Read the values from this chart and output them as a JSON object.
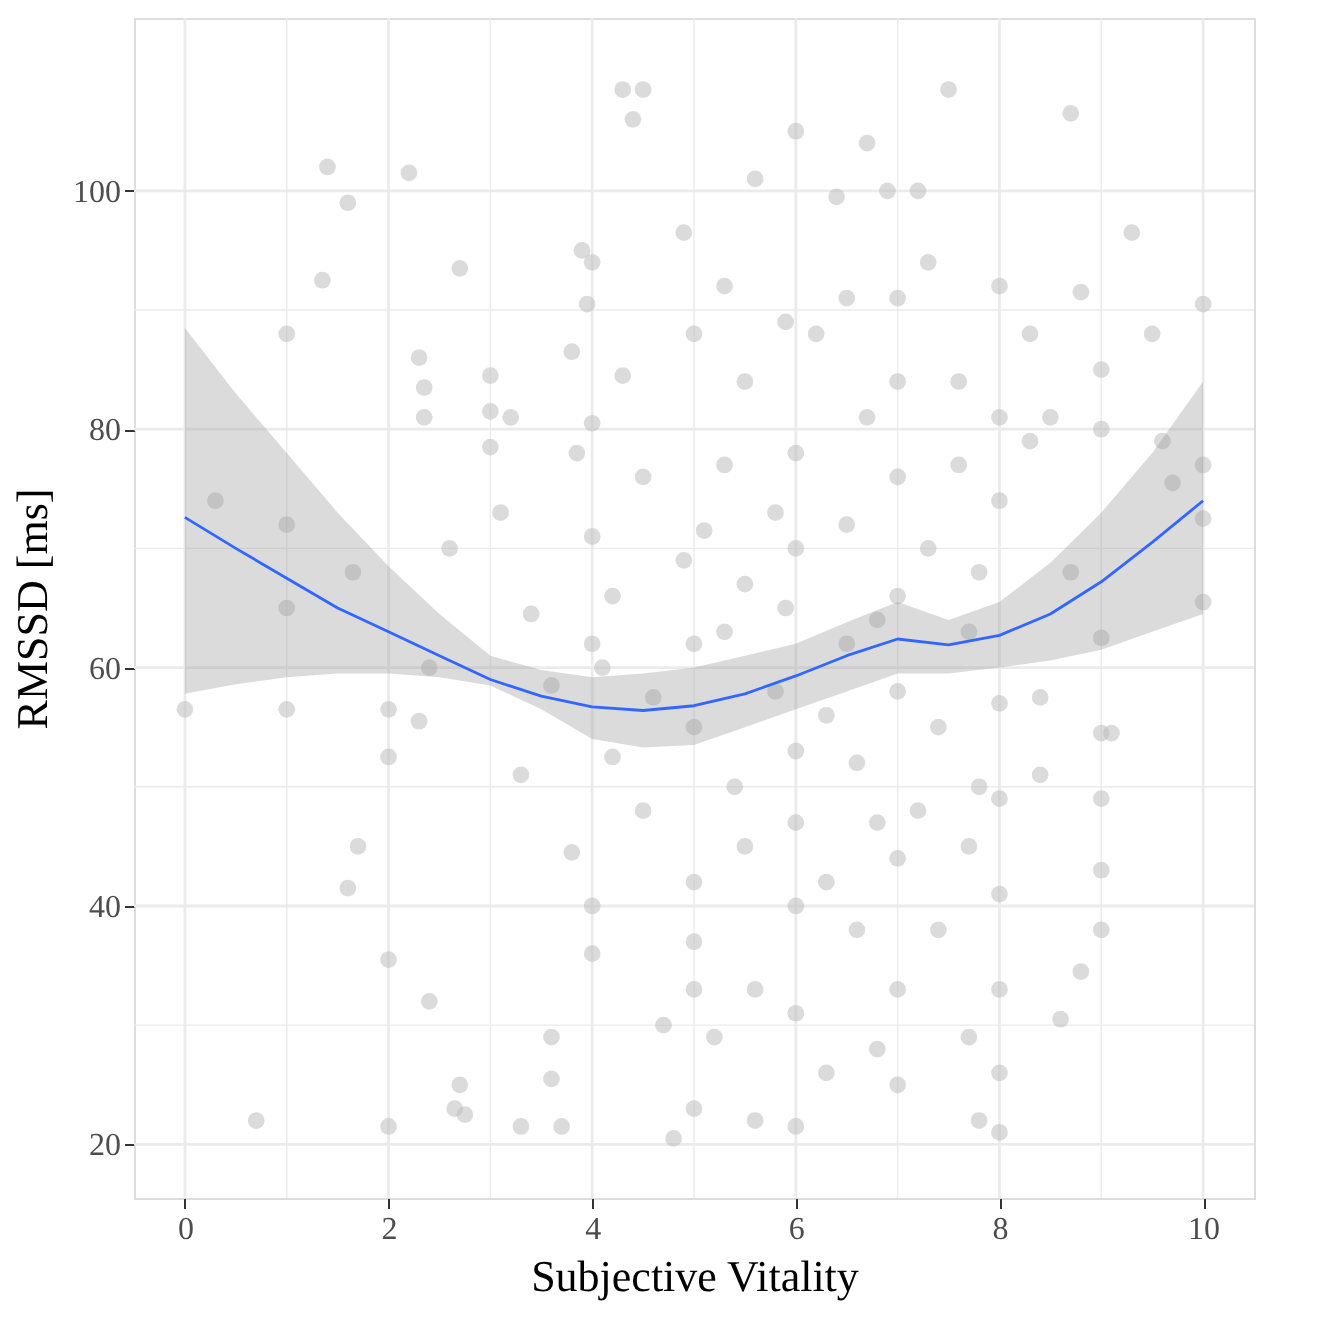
{
  "chart_data": {
    "type": "scatter",
    "xlabel": "Subjective Vitality",
    "ylabel": "RMSSD [ms]",
    "xlim": [
      -0.5,
      10.5
    ],
    "ylim": [
      15.5,
      114.5
    ],
    "xticks": [
      0,
      2,
      4,
      6,
      8,
      10
    ],
    "yticks": [
      20,
      40,
      60,
      80,
      100
    ],
    "grid": true,
    "marker": "circle",
    "series": [
      {
        "color": "#bebebe",
        "x": [
          0,
          0.3,
          0.7,
          1,
          1,
          1,
          1,
          1.35,
          1.4,
          1.6,
          1.65,
          1.7,
          1.6,
          2,
          2,
          2,
          2,
          2.2,
          2.3,
          2.35,
          2.35,
          2.4,
          2.3,
          2.4,
          2.6,
          2.7,
          2.7,
          2.65,
          2.75,
          3,
          3,
          3,
          3.1,
          3.2,
          3.3,
          3.3,
          3.4,
          3.6,
          3.6,
          3.6,
          3.7,
          3.8,
          3.8,
          3.85,
          3.9,
          3.95,
          4,
          4,
          4,
          4,
          4,
          4,
          4.1,
          4.2,
          4.2,
          4.3,
          4.4,
          4.3,
          4.5,
          4.5,
          4.6,
          4.7,
          4.8,
          4.9,
          4.9,
          5,
          5,
          5,
          5,
          5,
          5,
          5,
          5.1,
          5.3,
          5.3,
          5.3,
          5.4,
          5.5,
          5.5,
          5.6,
          5.6,
          5.6,
          5.8,
          5.8,
          5.9,
          5.9,
          6,
          6,
          6,
          6,
          6,
          6,
          6,
          6,
          6.2,
          6.3,
          6.3,
          6.4,
          6.5,
          6.5,
          6.6,
          6.6,
          6.7,
          6.7,
          6.8,
          6.8,
          6.9,
          7,
          7,
          7,
          7,
          7,
          7,
          7,
          7,
          7.2,
          7.3,
          7.3,
          7.4,
          7.4,
          7.5,
          7.6,
          7.6,
          7.7,
          7.7,
          7.7,
          7.8,
          7.8,
          8,
          8,
          8,
          8,
          8,
          8,
          8,
          8,
          8,
          8.3,
          8.3,
          8.4,
          8.4,
          8.5,
          8.6,
          8.7,
          8.8,
          8.8,
          8.7,
          9,
          9,
          9,
          9,
          9,
          9,
          9,
          9.1,
          9.3,
          9.5,
          9.6,
          9.7,
          10,
          10,
          10,
          10,
          7.8,
          6.5,
          5.5,
          4.5,
          6.3,
          7.2,
          5.2,
          6.8
        ],
        "values": [
          56.5,
          74,
          22,
          88,
          72,
          65,
          56.5,
          92.5,
          102,
          99,
          68,
          45,
          41.5,
          56.5,
          52.5,
          35.5,
          21.5,
          101.5,
          86,
          81,
          83.5,
          60,
          55.5,
          32,
          70,
          93.5,
          25,
          23,
          22.5,
          84.5,
          81.5,
          78.5,
          73,
          81,
          51,
          21.5,
          64.5,
          58.5,
          29,
          25.5,
          21.5,
          86.5,
          44.5,
          78,
          95,
          90.5,
          94,
          80.5,
          71,
          62,
          40,
          36,
          60,
          66,
          52.5,
          108.5,
          106,
          84.5,
          108.5,
          76,
          57.5,
          30,
          20.5,
          96.5,
          69,
          88,
          62,
          55,
          42,
          37,
          33,
          23,
          71.5,
          92,
          77,
          63,
          50,
          84,
          45,
          101,
          33,
          22,
          73,
          58,
          89,
          65,
          105,
          78,
          70,
          53,
          47,
          40,
          31,
          21.5,
          88,
          56,
          26,
          99.5,
          91,
          72,
          52,
          38,
          104,
          81,
          64,
          47,
          100,
          91,
          84,
          76,
          66,
          58,
          44,
          33,
          25,
          100,
          94,
          70,
          55,
          38,
          108.5,
          84,
          77,
          63,
          45,
          29,
          22,
          68,
          92,
          81,
          74,
          57,
          49,
          41,
          33,
          26,
          21,
          88,
          79,
          57.5,
          51,
          81,
          30.5,
          106.5,
          91.5,
          34.5,
          68,
          85,
          80,
          62.5,
          54.5,
          49,
          43,
          38,
          54.5,
          96.5,
          88,
          79,
          75.5,
          90.5,
          77,
          72.5,
          65.5,
          50,
          62,
          67,
          48,
          42,
          48,
          29,
          28
        ]
      },
      {
        "type": "line",
        "line_style": "solid",
        "marker": "none",
        "color": "#3366ff",
        "x": [
          0,
          0.5,
          1,
          1.5,
          2,
          2.5,
          3,
          3.5,
          4,
          4.5,
          5,
          5.5,
          6,
          6.5,
          7,
          7.5,
          8,
          8.5,
          9,
          9.5,
          10
        ],
        "values": [
          72.6,
          70,
          67.5,
          65,
          63,
          61,
          59,
          57.6,
          56.7,
          56.4,
          56.8,
          57.8,
          59.3,
          61,
          62.4,
          61.9,
          62.7,
          64.5,
          67.2,
          70.5,
          74
        ],
        "lower": [
          57.8,
          58.6,
          59.2,
          59.5,
          59.5,
          59.2,
          58.5,
          56.5,
          54,
          53.3,
          53.5,
          55,
          56.5,
          58,
          59.5,
          59.5,
          60,
          60.6,
          61.5,
          63,
          64.5
        ],
        "upper": [
          88.5,
          83,
          78,
          73,
          68.5,
          64.5,
          61,
          59.8,
          59.2,
          59.5,
          60,
          61,
          62,
          63.8,
          65.5,
          64,
          65.5,
          68.8,
          73,
          78,
          84
        ]
      }
    ]
  }
}
